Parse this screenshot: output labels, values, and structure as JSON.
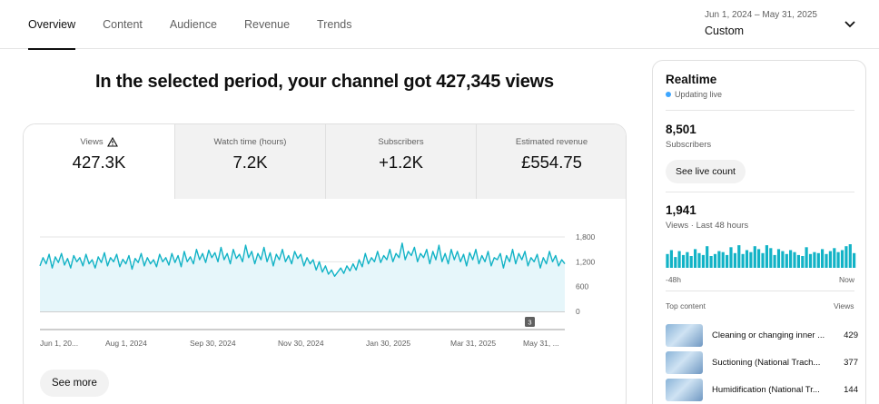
{
  "tabs": [
    {
      "label": "Overview",
      "active": true
    },
    {
      "label": "Content",
      "active": false
    },
    {
      "label": "Audience",
      "active": false
    },
    {
      "label": "Revenue",
      "active": false
    },
    {
      "label": "Trends",
      "active": false
    }
  ],
  "date_range": {
    "range": "Jun 1, 2024 – May 31, 2025",
    "label": "Custom"
  },
  "headline": "In the selected period, your channel got 427,345 views",
  "metrics": [
    {
      "label": "Views",
      "value": "427.3K",
      "warning_icon": "warning-triangle-icon"
    },
    {
      "label": "Watch time (hours)",
      "value": "7.2K"
    },
    {
      "label": "Subscribers",
      "value": "+1.2K"
    },
    {
      "label": "Estimated revenue",
      "value": "£554.75"
    }
  ],
  "chart": {
    "y_ticks": [
      "1,800",
      "1,200",
      "600",
      "0"
    ],
    "x_ticks": [
      "Jun 1, 20...",
      "Aug 1, 2024",
      "Sep 30, 2024",
      "Nov 30, 2024",
      "Jan 30, 2025",
      "Mar 31, 2025",
      "May 31, ..."
    ],
    "marker_label": "3"
  },
  "chart_data": {
    "type": "area",
    "title": "",
    "xlabel": "",
    "ylabel": "",
    "ylim": [
      0,
      1800
    ],
    "x_ticks": [
      "Jun 1, 20...",
      "Aug 1, 2024",
      "Sep 30, 2024",
      "Nov 30, 2024",
      "Jan 30, 2025",
      "Mar 31, 2025",
      "May 31, ..."
    ],
    "y_ticks": [
      0,
      600,
      1200,
      1800
    ],
    "series": [
      {
        "values": [
          1100,
          1300,
          1150,
          1380,
          1050,
          1320,
          1180,
          1400,
          1120,
          1280,
          1050,
          1350,
          1200,
          1300,
          1100,
          1380,
          1150,
          1250,
          1050,
          1320,
          1180,
          1420,
          1100,
          1300,
          1200,
          1380,
          1080,
          1260,
          1150,
          1350,
          1020,
          1280,
          1180,
          1400,
          1100,
          1300,
          1150,
          1250,
          1080,
          1380,
          1200,
          1300,
          1120,
          1400,
          1180,
          1350,
          1080,
          1450,
          1200,
          1320,
          1150,
          1500,
          1250,
          1400,
          1180,
          1480,
          1300,
          1420,
          1200,
          1550,
          1250,
          1400,
          1150,
          1500,
          1280,
          1380,
          1200,
          1600,
          1300,
          1450,
          1150,
          1400,
          1250,
          1550,
          1200,
          1420,
          1100,
          1380,
          1250,
          1500,
          1200,
          1350,
          1150,
          1450,
          1280,
          1380,
          1100,
          1300,
          1150,
          1250,
          1000,
          1200,
          950,
          1100,
          900,
          1000,
          850,
          950,
          1050,
          920,
          1100,
          980,
          1150,
          1000,
          1250,
          1080,
          1400,
          1150,
          1300,
          1200,
          1450,
          1180,
          1350,
          1250,
          1500,
          1200,
          1400,
          1300,
          1650,
          1250,
          1450,
          1350,
          1550,
          1200,
          1400,
          1300,
          1500,
          1150,
          1450,
          1250,
          1600,
          1200,
          1400,
          1150,
          1500,
          1250,
          1450,
          1200,
          1380,
          1100,
          1420,
          1250,
          1500,
          1150,
          1350,
          1200,
          1450,
          1100,
          1300,
          1250,
          1400,
          1050,
          1350,
          1200,
          1500,
          1150,
          1400,
          1250,
          1450,
          1100,
          1300,
          1200,
          1380,
          1050,
          1300,
          1150,
          1450,
          1200,
          1350,
          1100,
          1250,
          1150
        ]
      }
    ]
  },
  "see_more": "See more",
  "realtime": {
    "title": "Realtime",
    "status": "Updating live",
    "subscribers": "8,501",
    "subscribers_label": "Subscribers",
    "live_count_button": "See live count",
    "views": "1,941",
    "views_label": "Views · Last 48 hours",
    "axis_start": "-48h",
    "axis_end": "Now",
    "bars": [
      14,
      18,
      11,
      17,
      13,
      16,
      12,
      19,
      15,
      13,
      22,
      12,
      14,
      17,
      16,
      13,
      21,
      15,
      23,
      14,
      18,
      16,
      22,
      19,
      15,
      23,
      20,
      13,
      19,
      17,
      14,
      18,
      16,
      13,
      12,
      21,
      14,
      16,
      15,
      19,
      14,
      17,
      20,
      16,
      18,
      22,
      24,
      15
    ],
    "top_content_label": "Top content",
    "views_col_label": "Views",
    "top_content": [
      {
        "title": "Cleaning or changing inner ...",
        "views": "429"
      },
      {
        "title": "Suctioning (National Trach...",
        "views": "377"
      },
      {
        "title": "Humidification (National Tr...",
        "views": "144"
      }
    ]
  },
  "colors": {
    "series": "#12b3c6",
    "area": "#e6f6fa",
    "live_dot": "#3ea6ff",
    "bars": "#12b3c6"
  }
}
